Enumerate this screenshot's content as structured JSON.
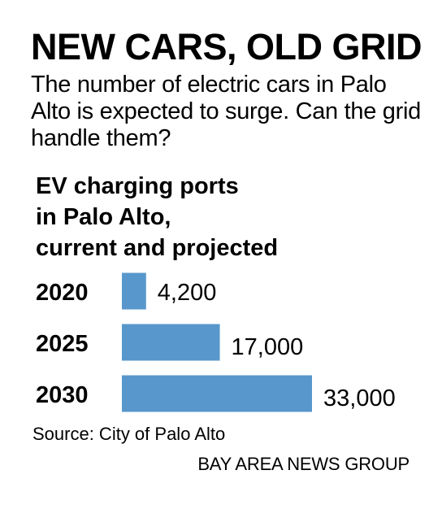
{
  "headline": "NEW CARS, OLD GRID",
  "dek": "The number of electric cars in Palo Alto is expected to surge. Can the grid handle them?",
  "source": "Source: City of Palo Alto",
  "credit": "BAY AREA NEWS GROUP",
  "colors": {
    "bar": "#5797cc",
    "text": "#000000",
    "background": "#ffffff"
  },
  "chart_data": {
    "type": "bar",
    "orientation": "horizontal",
    "title": "EV charging ports\nin Palo Alto,\ncurrent and projected",
    "categories": [
      "2020",
      "2025",
      "2030"
    ],
    "values": [
      4200,
      17000,
      33000
    ],
    "value_labels": [
      "4,200",
      "17,000",
      "33,000"
    ],
    "xlim": [
      0,
      33000
    ],
    "grid": false,
    "legend": "none"
  }
}
